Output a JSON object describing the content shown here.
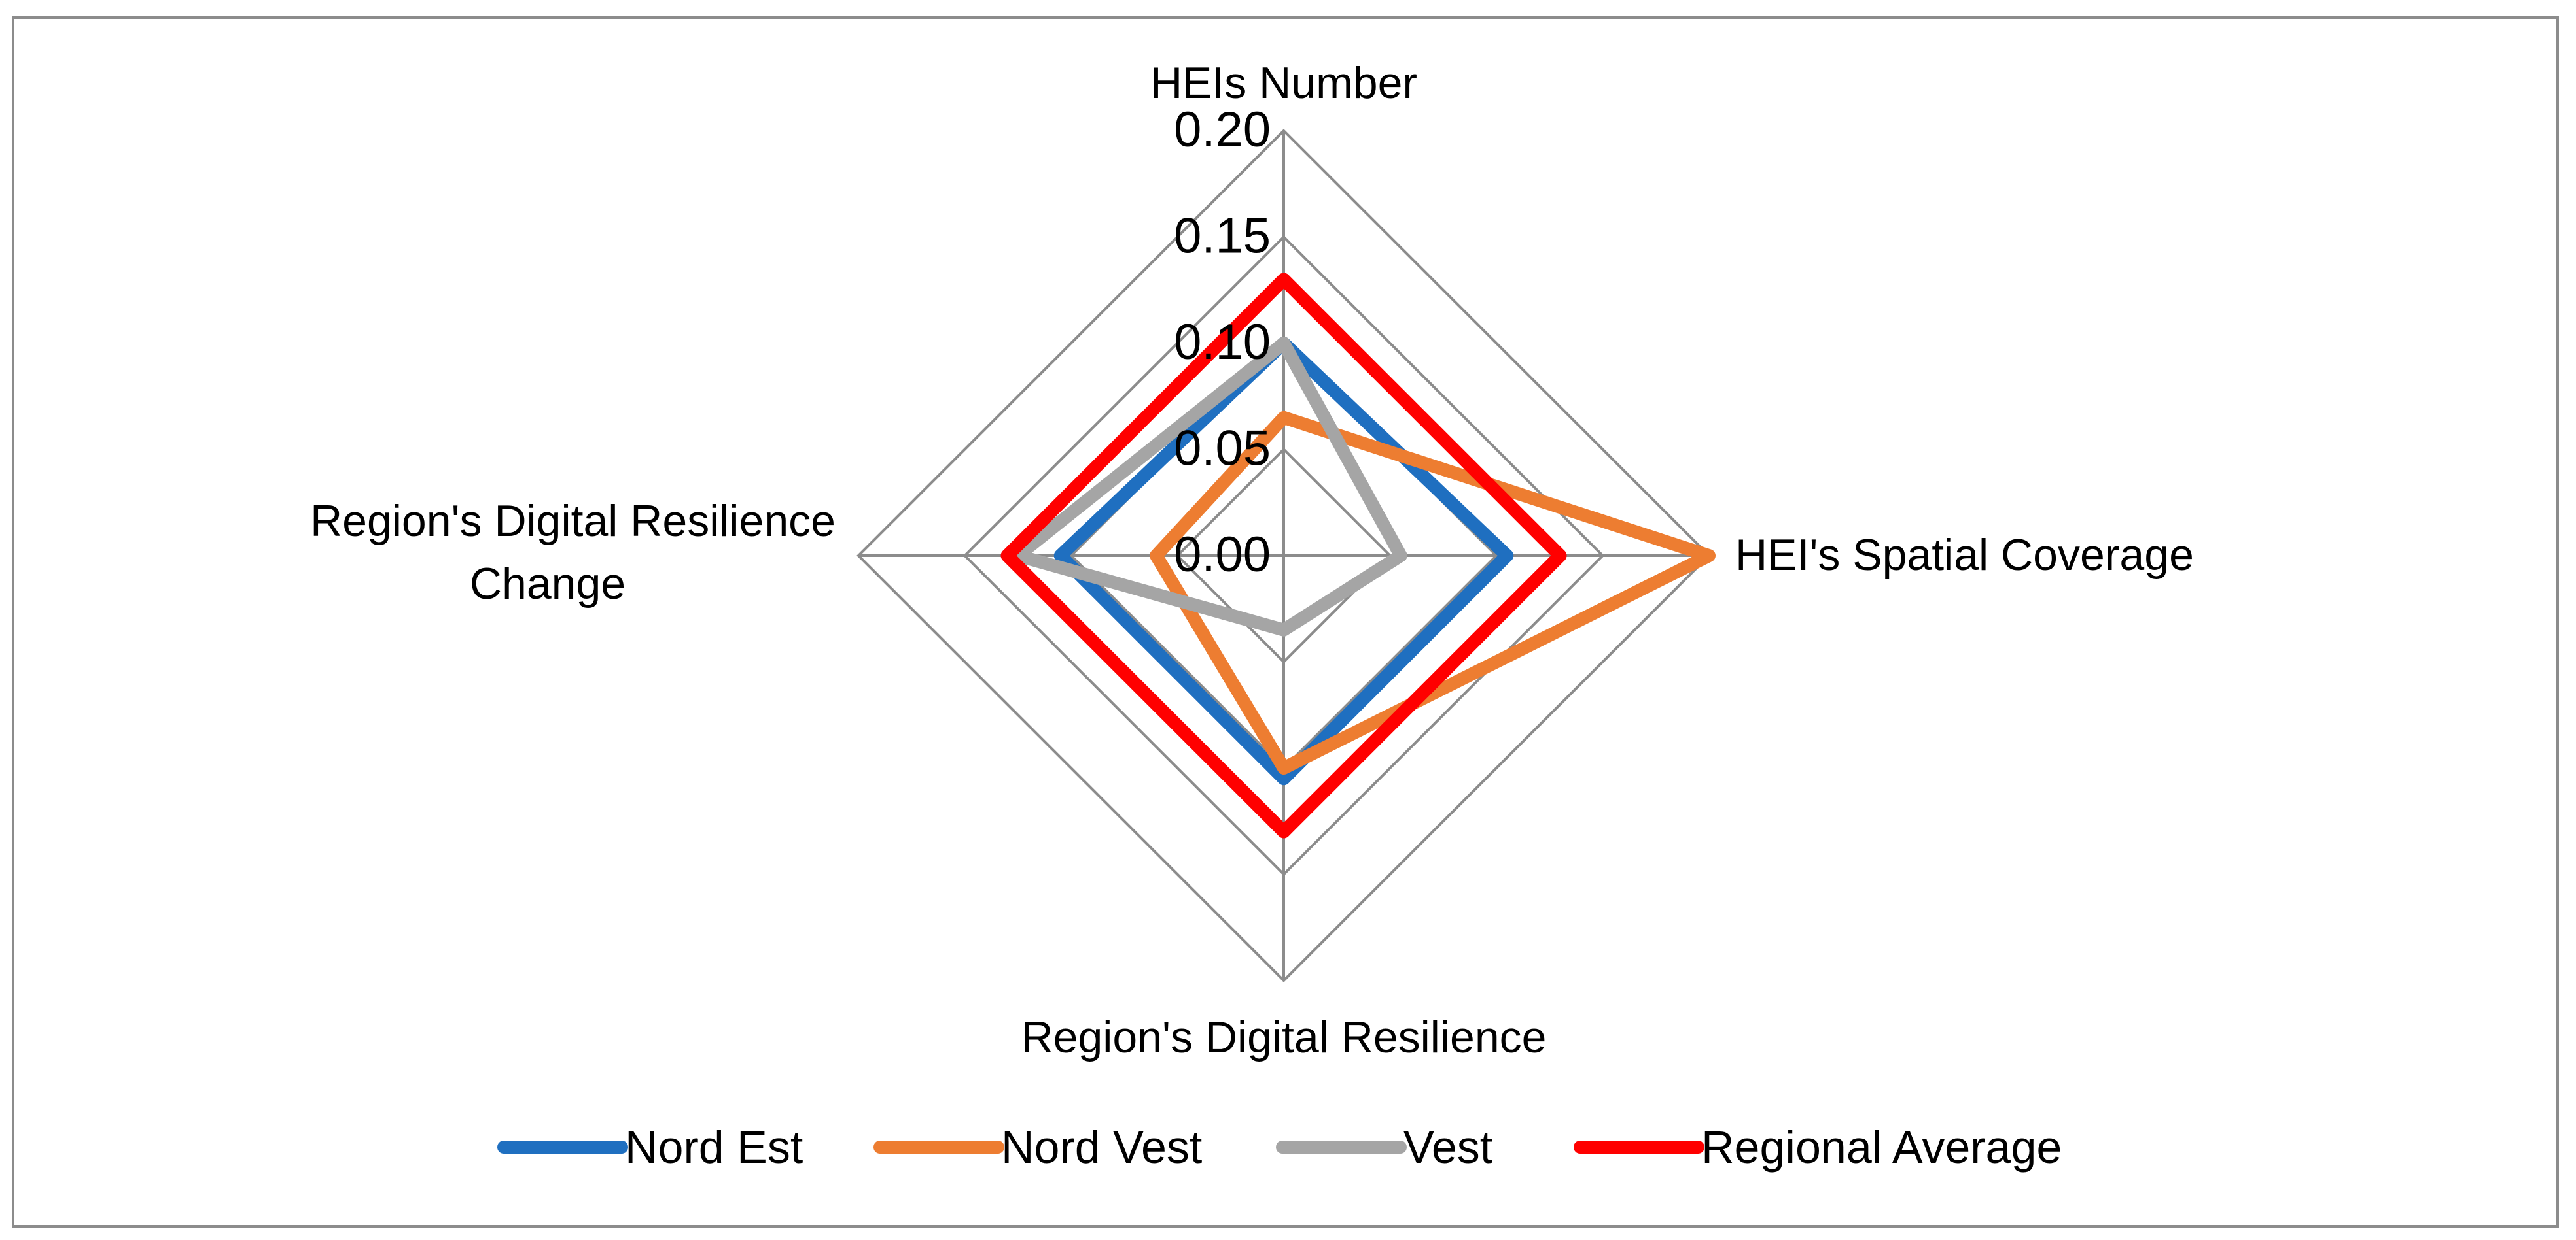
{
  "chart_data": {
    "type": "radar",
    "axes": [
      [
        "HEIs Number"
      ],
      [
        "HEI's Spatial Coverage"
      ],
      [
        "Region's Digital Resilience"
      ],
      [
        "Region's Digital Resilience",
        "Change"
      ]
    ],
    "ticks": [
      "0.00",
      "0.05",
      "0.10",
      "0.15",
      "0.20"
    ],
    "range": [
      0,
      0.2
    ],
    "grid": true,
    "legend_position": "bottom",
    "series": [
      {
        "name": "Nord Est",
        "color": "#1f6fc0",
        "values": [
          0.1,
          0.105,
          0.105,
          0.105
        ]
      },
      {
        "name": "Nord Vest",
        "color": "#ed7d31",
        "values": [
          0.065,
          0.2,
          0.1,
          0.06
        ]
      },
      {
        "name": "Vest",
        "color": "#a5a5a5",
        "values": [
          0.1,
          0.055,
          0.035,
          0.125
        ]
      },
      {
        "name": "Regional Average",
        "color": "#ff0000",
        "values": [
          0.13,
          0.13,
          0.13,
          0.13
        ]
      }
    ]
  }
}
